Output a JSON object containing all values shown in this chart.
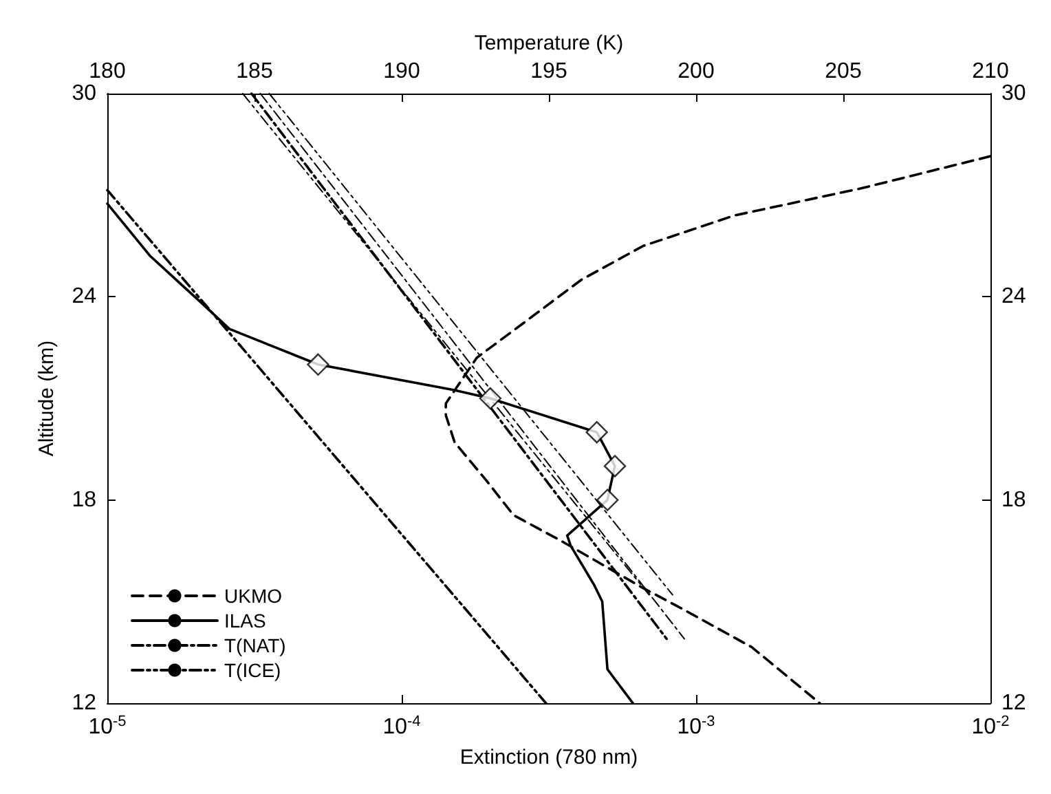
{
  "chart_data": {
    "type": "line",
    "xlabel": "Extinction (780 nm)",
    "x2label": "Temperature (K)",
    "ylabel": "Altitude (km)",
    "log": "x",
    "xlim": [
      1e-05,
      0.01
    ],
    "xticks": [
      {
        "value": 1e-05,
        "label": "10$^{-5}$"
      },
      {
        "value": 0.0001,
        "label": "10$^{-4}$"
      },
      {
        "value": 0.001,
        "label": "10$^{-3}$"
      },
      {
        "value": 0.01,
        "label": "10$^{-2}$"
      }
    ],
    "x2lim": [
      180,
      210
    ],
    "x2ticks": [
      180,
      185,
      190,
      195,
      200,
      205,
      210
    ],
    "ylim": [
      12,
      30
    ],
    "yticks": [
      12,
      18,
      24,
      30
    ],
    "y2lim": [
      12,
      30
    ],
    "y2ticks": [
      12,
      18,
      24,
      30
    ],
    "grid": false,
    "legend": "bottom left",
    "series": [
      {
        "name": "UKMO",
        "color": "#000000",
        "line_style": "dashed",
        "axis": "x2",
        "x": [
          210,
          205.6,
          201.3,
          198.2,
          196.1,
          194.1,
          192.55,
          191.5,
          191.5,
          191.8,
          192.9,
          193.8,
          195.3,
          196.7,
          198.2,
          199.5,
          201.9,
          204.2
        ],
        "values": [
          28.15,
          27.2,
          26.4,
          25.5,
          24.5,
          23.2,
          22.2,
          20.85,
          20.5,
          19.7,
          18.55,
          17.55,
          16.85,
          16.15,
          15.4,
          14.8,
          13.65,
          12
        ]
      },
      {
        "name": "ILAS",
        "color": "#000000",
        "line_style": "solid",
        "x": [
          1e-05,
          1.4e-05,
          2.1e-05,
          2.6e-05,
          5.2e-05,
          0.00015,
          0.0002,
          0.00046,
          0.00053,
          0.00051,
          0.0005,
          0.000365,
          0.000375,
          0.00045,
          0.00048,
          0.0005,
          0.00061
        ],
        "values": [
          26.75,
          25.2,
          23.8,
          23.05,
          22,
          21.25,
          21,
          20,
          19,
          18.35,
          18,
          16.95,
          16.65,
          15.5,
          15,
          13,
          12
        ]
      },
      {
        "type": "scatter",
        "color": "#000000",
        "marker": "diamond",
        "x": [
          5.2e-05,
          0.0002,
          0.00046,
          0.00053,
          0.0005
        ],
        "values": [
          22,
          21,
          20,
          19,
          18
        ]
      },
      {
        "name": "T(NAT)",
        "color": "#000000",
        "line_style": "dashdot",
        "axis": "x2",
        "x": [
          184.9,
          199.0
        ],
        "values": [
          30,
          13.9
        ]
      },
      {
        "name": "T(ICE)",
        "color": "#000000",
        "line_style": "dashdotdot",
        "axis": "x2",
        "x": [
          180,
          194.9
        ],
        "values": [
          27.15,
          12
        ]
      },
      {
        "color": "#000000",
        "line_style": "dashdotdot",
        "axis": "x2",
        "x": [
          184.6,
          198.4
        ],
        "values": [
          30,
          15.2
        ]
      },
      {
        "color": "#000000",
        "line_style": "dashdot",
        "axis": "x2",
        "x": [
          185.2,
          199.6
        ],
        "values": [
          30,
          13.9
        ]
      },
      {
        "color": "#000000",
        "line_style": "dashdotdot",
        "axis": "x2",
        "x": [
          185.5,
          199.2
        ],
        "values": [
          30,
          15.2
        ]
      }
    ]
  }
}
